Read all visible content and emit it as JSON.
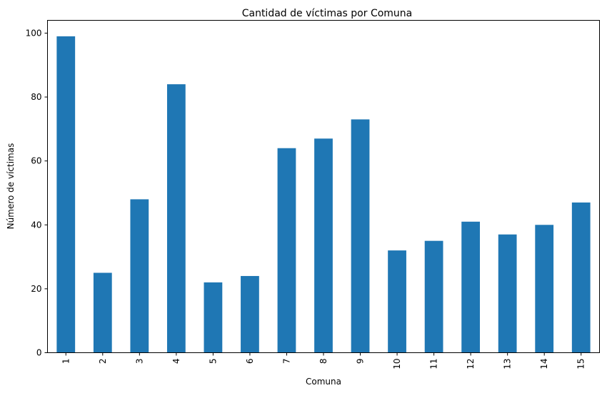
{
  "chart_data": {
    "type": "bar",
    "title": "Cantidad de víctimas por Comuna",
    "xlabel": "Comuna",
    "ylabel": "Número de víctimas",
    "categories": [
      "1",
      "2",
      "3",
      "4",
      "5",
      "6",
      "7",
      "8",
      "9",
      "10",
      "11",
      "12",
      "13",
      "14",
      "15"
    ],
    "values": [
      99,
      25,
      48,
      84,
      22,
      24,
      64,
      67,
      73,
      32,
      35,
      41,
      37,
      40,
      47
    ],
    "ylim": [
      0,
      104
    ],
    "yticks": [
      0,
      20,
      40,
      60,
      80,
      100
    ],
    "grid": false,
    "legend": "none",
    "bar_color": "#1f77b4"
  }
}
